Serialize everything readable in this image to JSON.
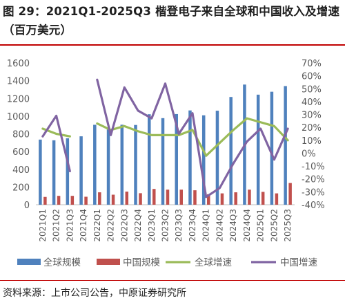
{
  "figure": {
    "title": "图 29：2021Q1-2025Q3 楷登电子来自全球和中国收入及增速（百万美元）",
    "source": "资料来源：上市公司公告，中原证券研究所"
  },
  "colors": {
    "global_bar": "#4f81bd",
    "china_bar": "#c0504d",
    "global_growth": "#9bbb59",
    "china_growth": "#8064a2",
    "rule": "#c00000"
  },
  "chart_data": {
    "type": "bar+line",
    "categories": [
      "2021Q1",
      "2021Q2",
      "2021Q3",
      "2021Q4",
      "2022Q1",
      "2022Q2",
      "2022Q3",
      "2022Q4",
      "2023Q1",
      "2023Q2",
      "2023Q3",
      "2023Q4",
      "2024Q1",
      "2024Q2",
      "2024Q3",
      "2024Q4",
      "2025Q1",
      "2025Q2",
      "2025Q3"
    ],
    "left_axis": {
      "min": 0,
      "max": 1600,
      "step": 200,
      "ticks": [
        "0",
        "200",
        "400",
        "600",
        "800",
        "1000",
        "1200",
        "1400",
        "1600"
      ]
    },
    "right_axis": {
      "min": -40,
      "max": 70,
      "step": 10,
      "ticks": [
        "-40%",
        "-30%",
        "-20%",
        "-10%",
        "0%",
        "10%",
        "20%",
        "30%",
        "40%",
        "50%",
        "60%",
        "70%"
      ]
    },
    "grid": false,
    "legend_position": "bottom",
    "series": [
      {
        "name": "全球规模",
        "type": "bar",
        "axis": "left",
        "color": "#4f81bd",
        "values": [
          735,
          727,
          750,
          772,
          902,
          857,
          903,
          900,
          1021,
          977,
          1023,
          1064,
          1009,
          1061,
          1216,
          1356,
          1242,
          1275,
          1339
        ]
      },
      {
        "name": "中国规模",
        "type": "bar",
        "axis": "left",
        "color": "#c0504d",
        "values": [
          88,
          100,
          100,
          90,
          140,
          113,
          148,
          130,
          178,
          170,
          170,
          163,
          118,
          128,
          140,
          170,
          145,
          128,
          245
        ]
      },
      {
        "name": "全球增速",
        "type": "line",
        "axis": "right",
        "color": "#9bbb59",
        "values": [
          19,
          15,
          13,
          null,
          23,
          18,
          21,
          17,
          14,
          14,
          14,
          18,
          -2,
          8,
          18,
          27,
          24,
          21,
          10
        ]
      },
      {
        "name": "中国增速",
        "type": "line",
        "axis": "right",
        "color": "#8064a2",
        "values": [
          13,
          29,
          -14,
          null,
          57,
          14,
          51,
          33,
          27,
          54,
          15,
          31,
          -34,
          -27,
          -8,
          9,
          19,
          -5,
          19
        ]
      }
    ]
  }
}
